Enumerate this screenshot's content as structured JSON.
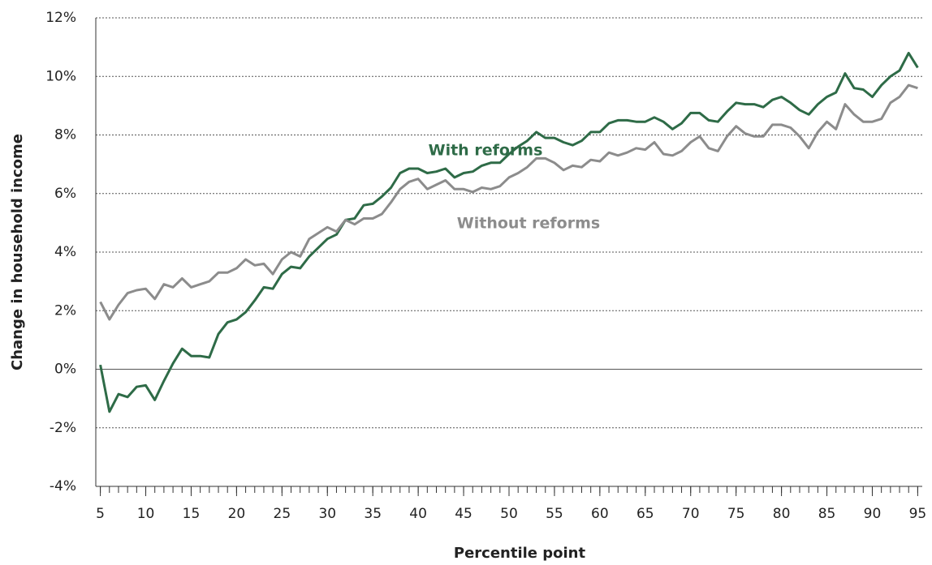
{
  "chart_data": {
    "type": "line",
    "x_label": "Percentile point",
    "y_label": "Change in household income",
    "x": [
      5,
      6,
      7,
      8,
      9,
      10,
      11,
      12,
      13,
      14,
      15,
      16,
      17,
      18,
      19,
      20,
      21,
      22,
      23,
      24,
      25,
      26,
      27,
      28,
      29,
      30,
      31,
      32,
      33,
      34,
      35,
      36,
      37,
      38,
      39,
      40,
      41,
      42,
      43,
      44,
      45,
      46,
      47,
      48,
      49,
      50,
      51,
      52,
      53,
      54,
      55,
      56,
      57,
      58,
      59,
      60,
      61,
      62,
      63,
      64,
      65,
      66,
      67,
      68,
      69,
      70,
      71,
      72,
      73,
      74,
      75,
      76,
      77,
      78,
      79,
      80,
      81,
      82,
      83,
      84,
      85,
      86,
      87,
      88,
      89,
      90,
      91,
      92,
      93,
      94,
      95
    ],
    "series": [
      {
        "name": "With reforms",
        "color": "#2e6b47",
        "values": [
          0.15,
          -1.45,
          -0.85,
          -0.95,
          -0.6,
          -0.55,
          -1.05,
          -0.4,
          0.2,
          0.7,
          0.45,
          0.45,
          0.4,
          1.2,
          1.6,
          1.7,
          1.95,
          2.35,
          2.8,
          2.75,
          3.25,
          3.5,
          3.45,
          3.85,
          4.15,
          4.45,
          4.6,
          5.1,
          5.15,
          5.6,
          5.65,
          5.9,
          6.2,
          6.7,
          6.85,
          6.85,
          6.7,
          6.75,
          6.85,
          6.55,
          6.7,
          6.75,
          6.95,
          7.05,
          7.05,
          7.35,
          7.6,
          7.8,
          8.1,
          7.9,
          7.9,
          7.75,
          7.65,
          7.8,
          8.1,
          8.1,
          8.4,
          8.5,
          8.5,
          8.45,
          8.45,
          8.6,
          8.45,
          8.2,
          8.4,
          8.75,
          8.75,
          8.5,
          8.45,
          8.8,
          9.1,
          9.05,
          9.05,
          8.95,
          9.2,
          9.3,
          9.1,
          8.85,
          8.7,
          9.05,
          9.3,
          9.45,
          10.1,
          9.6,
          9.55,
          9.3,
          9.7,
          10.0,
          10.2,
          10.8,
          10.3
        ]
      },
      {
        "name": "Without reforms",
        "color": "#8c8c8c",
        "values": [
          2.3,
          1.7,
          2.2,
          2.6,
          2.7,
          2.75,
          2.4,
          2.9,
          2.8,
          3.1,
          2.8,
          2.9,
          3.0,
          3.3,
          3.3,
          3.45,
          3.75,
          3.55,
          3.6,
          3.25,
          3.75,
          4.0,
          3.85,
          4.45,
          4.65,
          4.85,
          4.7,
          5.1,
          4.95,
          5.15,
          5.15,
          5.3,
          5.7,
          6.15,
          6.4,
          6.5,
          6.15,
          6.3,
          6.45,
          6.15,
          6.15,
          6.05,
          6.2,
          6.15,
          6.25,
          6.55,
          6.7,
          6.9,
          7.2,
          7.2,
          7.05,
          6.8,
          6.95,
          6.9,
          7.15,
          7.1,
          7.4,
          7.3,
          7.4,
          7.55,
          7.5,
          7.75,
          7.35,
          7.3,
          7.45,
          7.75,
          7.95,
          7.55,
          7.45,
          7.95,
          8.3,
          8.05,
          7.95,
          7.95,
          8.35,
          8.35,
          8.25,
          7.95,
          7.55,
          8.1,
          8.45,
          8.2,
          9.05,
          8.7,
          8.45,
          8.45,
          8.55,
          9.1,
          9.3,
          9.7,
          9.6
        ]
      }
    ],
    "xlim": [
      4.5,
      95.5
    ],
    "xticks": [
      5,
      10,
      15,
      20,
      25,
      30,
      35,
      40,
      45,
      50,
      55,
      60,
      65,
      70,
      75,
      80,
      85,
      90,
      95
    ],
    "ylim": [
      -4,
      12
    ],
    "yticks": [
      {
        "value": -4,
        "label": "-4%"
      },
      {
        "value": -2,
        "label": "-2%"
      },
      {
        "value": 0,
        "label": "0%"
      },
      {
        "value": 2,
        "label": "2%"
      },
      {
        "value": 4,
        "label": "4%"
      },
      {
        "value": 6,
        "label": "6%"
      },
      {
        "value": 8,
        "label": "8%"
      },
      {
        "value": 10,
        "label": "10%"
      },
      {
        "value": 12,
        "label": "12%"
      }
    ],
    "grid": true
  }
}
